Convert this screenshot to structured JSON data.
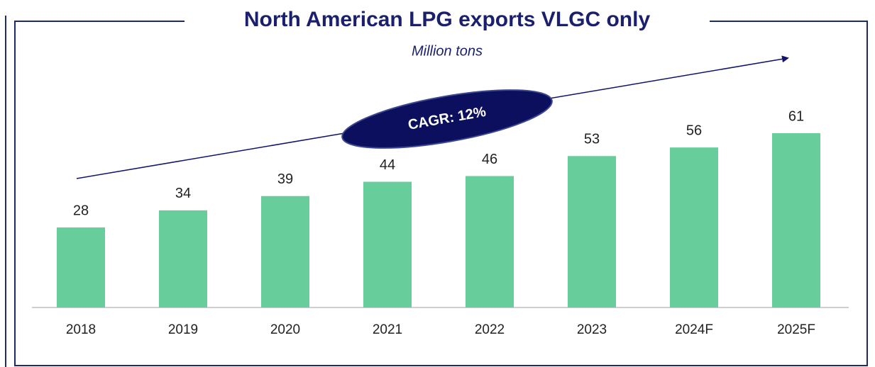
{
  "chart_data": {
    "type": "bar",
    "title": "North American LPG exports VLGC only",
    "subtitle": "Million tons",
    "categories": [
      "2018",
      "2019",
      "2020",
      "2021",
      "2022",
      "2023",
      "2024F",
      "2025F"
    ],
    "values": [
      28,
      34,
      39,
      44,
      46,
      53,
      56,
      61
    ],
    "color": "#66cd9b",
    "annotation": "CAGR: 12%"
  }
}
